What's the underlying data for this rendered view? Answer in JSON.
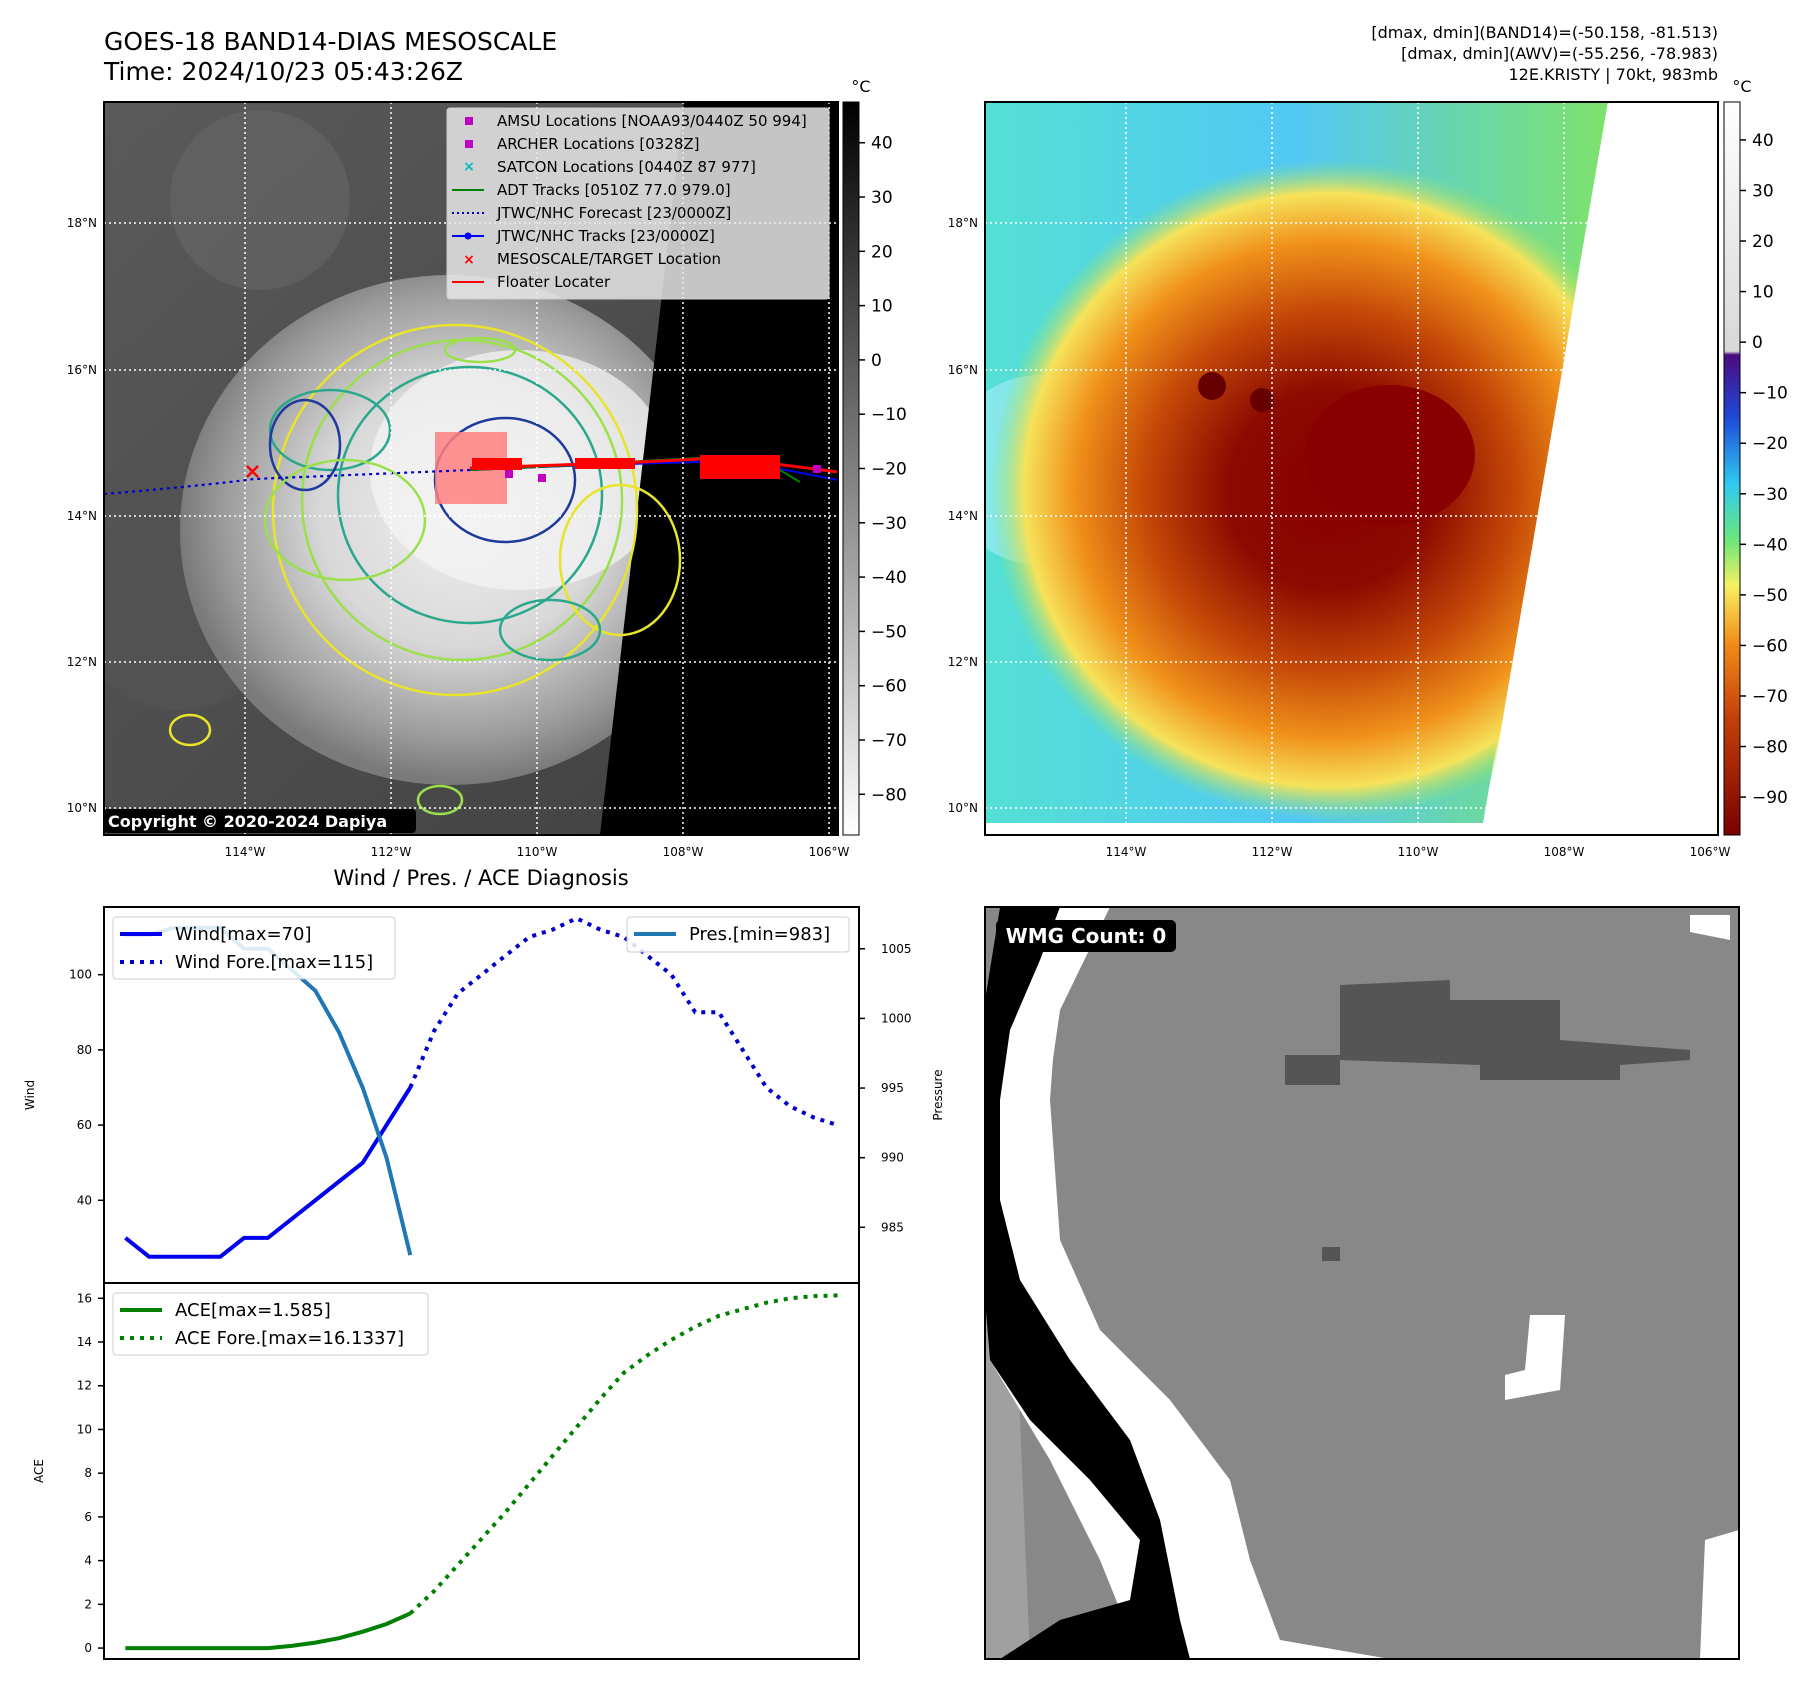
{
  "header": {
    "title": "GOES-18 BAND14-DIAS MESOSCALE",
    "time": "Time: 2024/10/23 05:43:26Z",
    "dmax_band14": "[dmax, dmin](BAND14)=(-50.158, -81.513)",
    "dmax_awv": "[dmax, dmin](AWV)=(-55.256, -78.983)",
    "storm_info": "12E.KRISTY | 70kt, 983mb"
  },
  "copyright": "Copyright © 2020-2024 Dapiya",
  "map": {
    "lat_labels": [
      "18°N",
      "16°N",
      "14°N",
      "12°N",
      "10°N"
    ],
    "lon_labels": [
      "114°W",
      "112°W",
      "110°W",
      "108°W",
      "106°W"
    ]
  },
  "ir_colorbar": {
    "unit": "°C",
    "ticks": [
      "40",
      "30",
      "20",
      "10",
      "0",
      "−10",
      "−20",
      "−30",
      "−40",
      "−50",
      "−60",
      "−70",
      "−80"
    ]
  },
  "wv_colorbar": {
    "unit": "°C",
    "ticks": [
      "40",
      "30",
      "20",
      "10",
      "0",
      "−10",
      "−20",
      "−30",
      "−40",
      "−50",
      "−60",
      "−70",
      "−80",
      "−90"
    ]
  },
  "legend": {
    "items": [
      "AMSU Locations [NOAA93/0440Z 50 994]",
      "ARCHER Locations [0328Z]",
      "SATCON Locations [0440Z 87 977]",
      "ADT Tracks [0510Z 77.0 979.0]",
      "JTWC/NHC Forecast [23/0000Z]",
      "JTWC/NHC Tracks [23/0000Z]",
      "MESOSCALE/TARGET Location",
      "Floater Locater"
    ]
  },
  "wmg": {
    "label": "WMG Count: 0"
  },
  "colors": {
    "wind": "#0000ee",
    "pressure": "#1f77b4",
    "ace": "#008000",
    "forecast": "#0000cc",
    "floater": "#ff0000",
    "amsu": "#c000c0",
    "satcon": "#00bbbb",
    "adt": "#008000"
  },
  "chart_data": [
    {
      "type": "line",
      "title": "Wind / Pres. / ACE Diagnosis",
      "ylabel": "Wind",
      "y2label": "Pressure",
      "ylim": [
        18,
        118
      ],
      "y2lim": [
        981,
        1008
      ],
      "yticks": [
        40,
        60,
        80,
        100
      ],
      "y2ticks": [
        985,
        990,
        995,
        1000,
        1005
      ],
      "x": [
        0,
        1,
        2,
        3,
        4,
        5,
        6,
        7,
        8,
        9,
        10,
        11,
        12,
        13,
        14,
        15,
        16,
        17,
        18,
        19,
        20,
        21,
        22,
        23,
        24,
        25,
        26,
        27,
        28,
        29,
        30
      ],
      "series": [
        {
          "name": "Wind[max=70]",
          "axis": "left",
          "style": "solid",
          "x": [
            0,
            1,
            2,
            3,
            4,
            5,
            6,
            7,
            8,
            9,
            10,
            11,
            12
          ],
          "values": [
            30,
            25,
            25,
            25,
            25,
            30,
            30,
            35,
            40,
            45,
            50,
            60,
            70
          ]
        },
        {
          "name": "Wind Fore.[max=115]",
          "axis": "left",
          "style": "dotted",
          "x": [
            12,
            13,
            14,
            15,
            16,
            17,
            18,
            19,
            20,
            21,
            22,
            23,
            24,
            25,
            26,
            27,
            28,
            29,
            30
          ],
          "values": [
            70,
            85,
            95,
            100,
            105,
            110,
            112,
            115,
            112,
            110,
            105,
            100,
            90,
            90,
            80,
            70,
            65,
            62,
            60
          ]
        },
        {
          "name": "Pres.[min=983]",
          "axis": "right",
          "style": "solid",
          "x": [
            0,
            1,
            2,
            3,
            4,
            5,
            6,
            7,
            8,
            9,
            10,
            11,
            12
          ],
          "values": [
            1006,
            1006,
            1006.5,
            1006.5,
            1006.5,
            1005,
            1005,
            1003.5,
            1002,
            999,
            995,
            990,
            983
          ]
        }
      ]
    },
    {
      "type": "line",
      "ylabel": "ACE",
      "ylim": [
        -0.5,
        16.7
      ],
      "yticks": [
        0,
        2,
        4,
        6,
        8,
        10,
        12,
        14,
        16
      ],
      "series": [
        {
          "name": "ACE[max=1.585]",
          "style": "solid",
          "x": [
            0,
            1,
            2,
            3,
            4,
            5,
            6,
            7,
            8,
            9,
            10,
            11,
            12
          ],
          "values": [
            0,
            0,
            0,
            0,
            0,
            0,
            0,
            0.1,
            0.25,
            0.45,
            0.75,
            1.1,
            1.585
          ]
        },
        {
          "name": "ACE Fore.[max=16.1337]",
          "style": "dotted",
          "x": [
            12,
            13,
            14,
            15,
            16,
            17,
            18,
            19,
            20,
            21,
            22,
            23,
            24,
            25,
            26,
            27,
            28,
            29,
            30
          ],
          "values": [
            1.585,
            2.6,
            3.8,
            5.0,
            6.2,
            7.5,
            8.8,
            10.1,
            11.4,
            12.6,
            13.4,
            14.1,
            14.7,
            15.2,
            15.5,
            15.8,
            16.0,
            16.1,
            16.1337
          ]
        }
      ]
    }
  ]
}
